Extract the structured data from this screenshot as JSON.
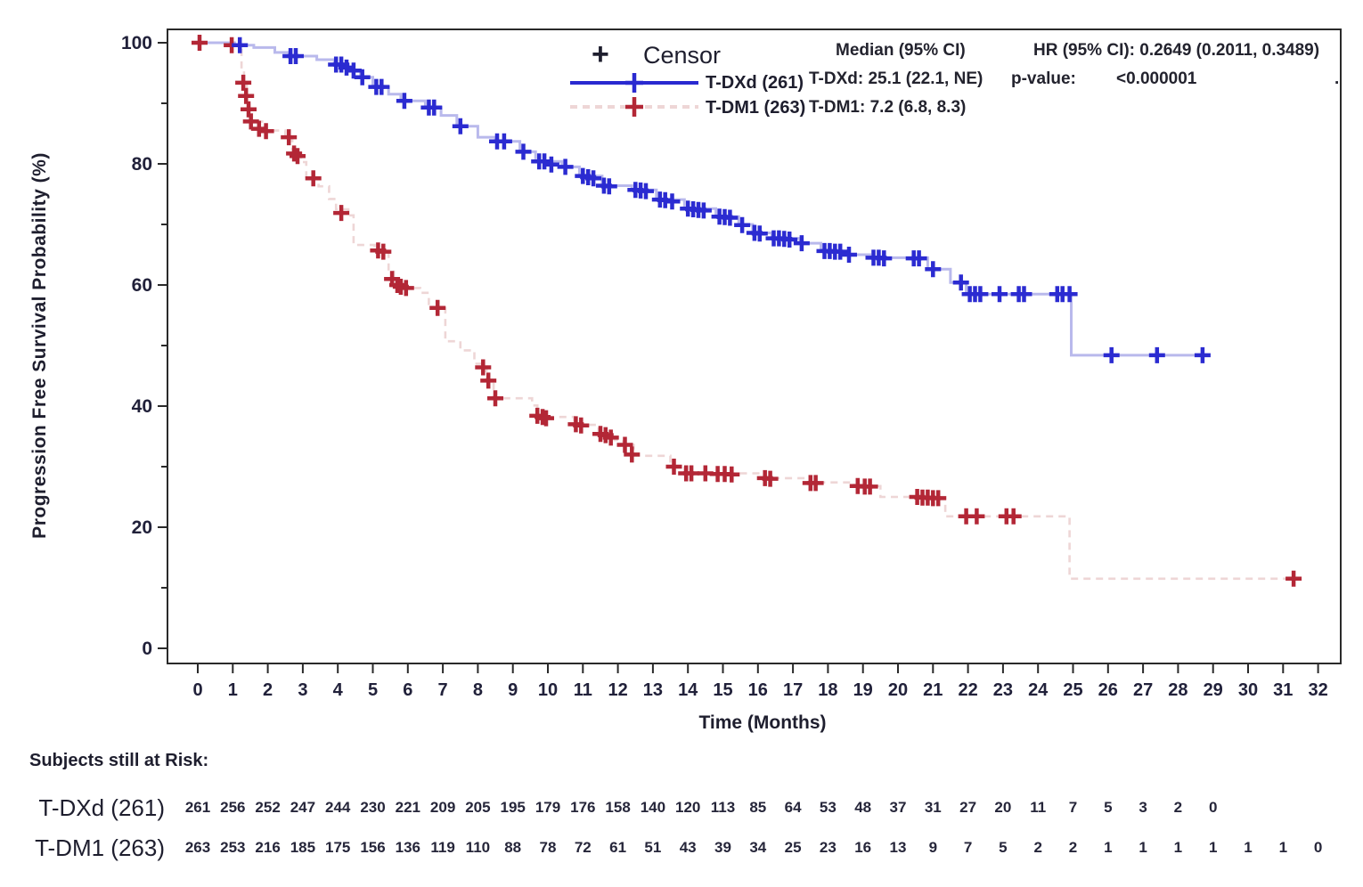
{
  "colors": {
    "frame": "#2a2a2a",
    "text": "#1e1e2e",
    "tdxd_line": "#b9b9ec",
    "tdxd_censor": "#2b2bd1",
    "tdxd_legend_line": "#2a2ad0",
    "tdm1_line": "#eed6d6",
    "tdm1_censor": "#b32736"
  },
  "legend": {
    "censor_symbol": "+",
    "censor_label": "Censor",
    "items": [
      {
        "label": "T-DXd (261)",
        "style": "solid"
      },
      {
        "label": "T-DM1 (263)",
        "style": "dashed"
      }
    ]
  },
  "stats": {
    "median_header": "Median (95% CI)",
    "tdxd_median": "T-DXd: 25.1 (22.1, NE)",
    "tdm1_median": "T-DM1: 7.2 (6.8, 8.3)",
    "hr_text": "HR (95% CI): 0.2649 (0.2011, 0.3489)",
    "pvalue_label": "p-value:",
    "pvalue_value": "<0.000001",
    "trailing_dot": "."
  },
  "chart_data": {
    "type": "line",
    "subtype": "kaplan-meier-step",
    "title": "",
    "xlabel": "Time (Months)",
    "ylabel": "Progression Free Survival Probability (%)",
    "xlim": [
      0,
      32
    ],
    "ylim": [
      0,
      100
    ],
    "x_tick_step": 1,
    "y_major_tick_step": 20,
    "y_minor_tick_step": 10,
    "grid": false,
    "legend_position": "top-center",
    "series": [
      {
        "name": "T-DXd (261)",
        "median_months": 25.1,
        "median_ci": "22.1, NE",
        "steps": [
          [
            0,
            100
          ],
          [
            1.05,
            99.6
          ],
          [
            1.6,
            99.2
          ],
          [
            2.2,
            98.4
          ],
          [
            2.6,
            97.8
          ],
          [
            3.4,
            97.2
          ],
          [
            3.9,
            96.4
          ],
          [
            4.3,
            95.4
          ],
          [
            4.65,
            94.3
          ],
          [
            5.0,
            92.7
          ],
          [
            5.45,
            91.5
          ],
          [
            5.8,
            90.4
          ],
          [
            6.5,
            89.3
          ],
          [
            6.95,
            88.0
          ],
          [
            7.4,
            86.2
          ],
          [
            8.0,
            84.4
          ],
          [
            8.5,
            83.7
          ],
          [
            9.2,
            82.0
          ],
          [
            9.65,
            80.4
          ],
          [
            10.4,
            79.5
          ],
          [
            10.9,
            78.0
          ],
          [
            11.55,
            76.4
          ],
          [
            12.4,
            75.7
          ],
          [
            13.1,
            74.1
          ],
          [
            13.9,
            72.6
          ],
          [
            14.8,
            71.3
          ],
          [
            15.45,
            70.0
          ],
          [
            15.85,
            68.6
          ],
          [
            16.4,
            67.7
          ],
          [
            17.2,
            66.9
          ],
          [
            17.8,
            65.6
          ],
          [
            18.5,
            65.0
          ],
          [
            19.2,
            64.5
          ],
          [
            20.85,
            62.6
          ],
          [
            21.5,
            60.4
          ],
          [
            21.95,
            58.5
          ],
          [
            24.95,
            48.4
          ],
          [
            28.85,
            48.4
          ]
        ],
        "censors": [
          [
            1.2,
            99.6
          ],
          [
            2.65,
            97.8
          ],
          [
            2.8,
            97.8
          ],
          [
            3.95,
            96.4
          ],
          [
            4.1,
            96.4
          ],
          [
            4.25,
            95.9
          ],
          [
            4.45,
            95.4
          ],
          [
            4.7,
            94.3
          ],
          [
            5.1,
            92.7
          ],
          [
            5.25,
            92.7
          ],
          [
            5.9,
            90.4
          ],
          [
            6.6,
            89.3
          ],
          [
            6.75,
            89.3
          ],
          [
            7.5,
            86.2
          ],
          [
            8.55,
            83.7
          ],
          [
            8.75,
            83.7
          ],
          [
            9.3,
            82.0
          ],
          [
            9.75,
            80.4
          ],
          [
            9.9,
            80.4
          ],
          [
            10.1,
            79.9
          ],
          [
            10.5,
            79.5
          ],
          [
            11.0,
            78.0
          ],
          [
            11.15,
            77.8
          ],
          [
            11.3,
            77.6
          ],
          [
            11.6,
            76.4
          ],
          [
            11.75,
            76.3
          ],
          [
            12.5,
            75.7
          ],
          [
            12.65,
            75.6
          ],
          [
            12.8,
            75.5
          ],
          [
            13.2,
            74.1
          ],
          [
            13.35,
            74.0
          ],
          [
            13.55,
            73.8
          ],
          [
            14.0,
            72.6
          ],
          [
            14.15,
            72.5
          ],
          [
            14.3,
            72.4
          ],
          [
            14.45,
            72.3
          ],
          [
            14.9,
            71.3
          ],
          [
            15.05,
            71.2
          ],
          [
            15.2,
            71.1
          ],
          [
            15.55,
            69.9
          ],
          [
            15.9,
            68.6
          ],
          [
            16.05,
            68.5
          ],
          [
            16.45,
            67.7
          ],
          [
            16.6,
            67.7
          ],
          [
            16.75,
            67.6
          ],
          [
            16.9,
            67.5
          ],
          [
            17.25,
            66.9
          ],
          [
            17.9,
            65.6
          ],
          [
            18.05,
            65.6
          ],
          [
            18.2,
            65.5
          ],
          [
            18.35,
            65.5
          ],
          [
            18.6,
            65.0
          ],
          [
            19.3,
            64.5
          ],
          [
            19.45,
            64.5
          ],
          [
            19.6,
            64.4
          ],
          [
            20.45,
            64.4
          ],
          [
            20.6,
            64.4
          ],
          [
            21.0,
            62.6
          ],
          [
            21.8,
            60.4
          ],
          [
            22.05,
            58.5
          ],
          [
            22.2,
            58.5
          ],
          [
            22.35,
            58.5
          ],
          [
            22.9,
            58.5
          ],
          [
            23.45,
            58.5
          ],
          [
            23.6,
            58.5
          ],
          [
            24.55,
            58.5
          ],
          [
            24.7,
            58.5
          ],
          [
            24.9,
            58.5
          ],
          [
            26.1,
            48.4
          ],
          [
            27.4,
            48.4
          ],
          [
            28.7,
            48.4
          ]
        ]
      },
      {
        "name": "T-DM1 (263)",
        "median_months": 7.2,
        "median_ci": "6.8, 8.3",
        "steps": [
          [
            0,
            100
          ],
          [
            0.95,
            99.6
          ],
          [
            1.25,
            95.5
          ],
          [
            1.32,
            93.4
          ],
          [
            1.4,
            91.2
          ],
          [
            1.48,
            89.0
          ],
          [
            1.55,
            87.0
          ],
          [
            1.9,
            85.5
          ],
          [
            2.5,
            84.4
          ],
          [
            2.7,
            81.7
          ],
          [
            2.95,
            80.3
          ],
          [
            3.1,
            77.8
          ],
          [
            3.45,
            76.3
          ],
          [
            3.75,
            74.2
          ],
          [
            3.95,
            72.5
          ],
          [
            4.3,
            71.5
          ],
          [
            4.45,
            66.6
          ],
          [
            5.05,
            65.7
          ],
          [
            5.45,
            62.2
          ],
          [
            5.6,
            60.2
          ],
          [
            5.85,
            59.5
          ],
          [
            6.35,
            58.7
          ],
          [
            6.6,
            56.2
          ],
          [
            7.07,
            50.7
          ],
          [
            7.5,
            49.2
          ],
          [
            7.9,
            47.0
          ],
          [
            8.15,
            46.4
          ],
          [
            8.25,
            44.2
          ],
          [
            8.45,
            41.3
          ],
          [
            9.55,
            40.1
          ],
          [
            9.7,
            38.2
          ],
          [
            10.75,
            36.9
          ],
          [
            11.45,
            35.5
          ],
          [
            11.9,
            34.4
          ],
          [
            12.15,
            33.6
          ],
          [
            12.45,
            31.8
          ],
          [
            13.5,
            30.1
          ],
          [
            13.9,
            28.9
          ],
          [
            16.1,
            28.1
          ],
          [
            17.4,
            27.4
          ],
          [
            18.75,
            26.8
          ],
          [
            19.5,
            25.0
          ],
          [
            21.35,
            21.8
          ],
          [
            24.9,
            11.5
          ],
          [
            31.45,
            11.5
          ]
        ],
        "censors": [
          [
            0.05,
            100
          ],
          [
            0.97,
            99.6
          ],
          [
            1.3,
            93.4
          ],
          [
            1.38,
            91.2
          ],
          [
            1.45,
            89.0
          ],
          [
            1.52,
            87.0
          ],
          [
            1.75,
            85.8
          ],
          [
            1.95,
            85.4
          ],
          [
            2.6,
            84.4
          ],
          [
            2.75,
            81.7
          ],
          [
            2.85,
            81.3
          ],
          [
            3.3,
            77.6
          ],
          [
            4.1,
            71.9
          ],
          [
            5.15,
            65.7
          ],
          [
            5.3,
            65.5
          ],
          [
            5.55,
            61.0
          ],
          [
            5.7,
            60.0
          ],
          [
            5.8,
            59.7
          ],
          [
            5.95,
            59.5
          ],
          [
            6.85,
            56.2
          ],
          [
            8.15,
            46.4
          ],
          [
            8.3,
            44.2
          ],
          [
            8.5,
            41.3
          ],
          [
            9.7,
            38.4
          ],
          [
            9.85,
            38.2
          ],
          [
            9.95,
            38.0
          ],
          [
            10.8,
            37.0
          ],
          [
            10.95,
            36.8
          ],
          [
            11.5,
            35.4
          ],
          [
            11.65,
            35.2
          ],
          [
            11.8,
            34.8
          ],
          [
            12.2,
            33.6
          ],
          [
            12.4,
            32.0
          ],
          [
            13.6,
            30.0
          ],
          [
            13.95,
            28.9
          ],
          [
            14.1,
            28.9
          ],
          [
            14.5,
            28.9
          ],
          [
            14.85,
            28.8
          ],
          [
            15.05,
            28.8
          ],
          [
            15.25,
            28.7
          ],
          [
            16.2,
            28.1
          ],
          [
            16.35,
            28.0
          ],
          [
            17.5,
            27.3
          ],
          [
            17.65,
            27.3
          ],
          [
            18.85,
            26.8
          ],
          [
            19.05,
            26.7
          ],
          [
            19.2,
            26.7
          ],
          [
            20.55,
            25.0
          ],
          [
            20.7,
            24.9
          ],
          [
            20.85,
            24.9
          ],
          [
            21.0,
            24.8
          ],
          [
            21.15,
            24.8
          ],
          [
            21.95,
            21.8
          ],
          [
            22.25,
            21.8
          ],
          [
            23.1,
            21.8
          ],
          [
            23.3,
            21.8
          ],
          [
            31.3,
            11.5
          ]
        ]
      }
    ]
  },
  "risk_table": {
    "title": "Subjects still at Risk:",
    "rows": [
      {
        "label": "T-DXd (261)",
        "start_month": 0,
        "counts": [
          261,
          256,
          252,
          247,
          244,
          230,
          221,
          209,
          205,
          195,
          179,
          176,
          158,
          140,
          120,
          113,
          85,
          64,
          53,
          48,
          37,
          31,
          27,
          20,
          11,
          7,
          5,
          3,
          2,
          0
        ]
      },
      {
        "label": "T-DM1 (263)",
        "start_month": 0,
        "counts": [
          263,
          253,
          216,
          185,
          175,
          156,
          136,
          119,
          110,
          88,
          78,
          72,
          61,
          51,
          43,
          39,
          34,
          25,
          23,
          16,
          13,
          9,
          7,
          5,
          2,
          2,
          1,
          1,
          1,
          1,
          1,
          1,
          0
        ]
      }
    ]
  }
}
